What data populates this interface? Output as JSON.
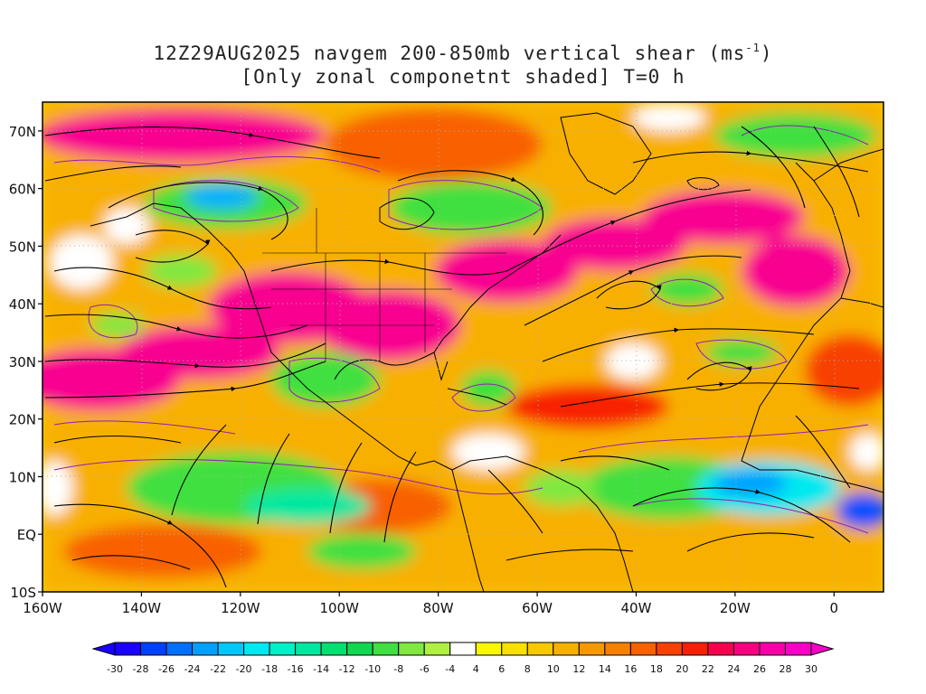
{
  "title": {
    "line1_main": "12Z29AUG2025 navgem 200-850mb vertical shear (ms",
    "line1_sup": "-1",
    "line1_end": ")",
    "line2": "[Only zonal componetnt shaded] T=0 h"
  },
  "map": {
    "lon_range": [
      -160,
      10
    ],
    "lat_range": [
      -10,
      75
    ],
    "lat_labels": [
      {
        "lat": 70,
        "text": "70N"
      },
      {
        "lat": 60,
        "text": "60N"
      },
      {
        "lat": 50,
        "text": "50N"
      },
      {
        "lat": 40,
        "text": "40N"
      },
      {
        "lat": 30,
        "text": "30N"
      },
      {
        "lat": 20,
        "text": "20N"
      },
      {
        "lat": 10,
        "text": "10N"
      },
      {
        "lat": 0,
        "text": "EQ"
      },
      {
        "lat": -10,
        "text": "10S"
      }
    ],
    "lon_labels": [
      {
        "lon": -160,
        "text": "160W"
      },
      {
        "lon": -140,
        "text": "140W"
      },
      {
        "lon": -120,
        "text": "120W"
      },
      {
        "lon": -100,
        "text": "100W"
      },
      {
        "lon": -80,
        "text": "80W"
      },
      {
        "lon": -60,
        "text": "60W"
      },
      {
        "lon": -40,
        "text": "40W"
      },
      {
        "lon": -20,
        "text": "20W"
      },
      {
        "lon": 0,
        "text": "0"
      }
    ]
  },
  "colorbar": {
    "labels": [
      "-30",
      "-28",
      "-26",
      "-24",
      "-22",
      "-20",
      "-18",
      "-16",
      "-14",
      "-12",
      "-10",
      "-8",
      "-6",
      "-4",
      "4",
      "6",
      "8",
      "10",
      "12",
      "14",
      "16",
      "18",
      "20",
      "22",
      "24",
      "26",
      "28",
      "30"
    ],
    "colors": [
      "#1a00ff",
      "#0040ff",
      "#0070ff",
      "#00a0ff",
      "#00c8ff",
      "#00e8f0",
      "#00f0c8",
      "#00e8a0",
      "#00e070",
      "#10d850",
      "#40e040",
      "#80e840",
      "#b0f040",
      "#ffffff",
      "#f8f800",
      "#f8e000",
      "#f8c800",
      "#f8b000",
      "#f89800",
      "#f88000",
      "#f86000",
      "#f84000",
      "#f82000",
      "#f80050",
      "#f80080",
      "#f800a8",
      "#f800c8"
    ]
  }
}
